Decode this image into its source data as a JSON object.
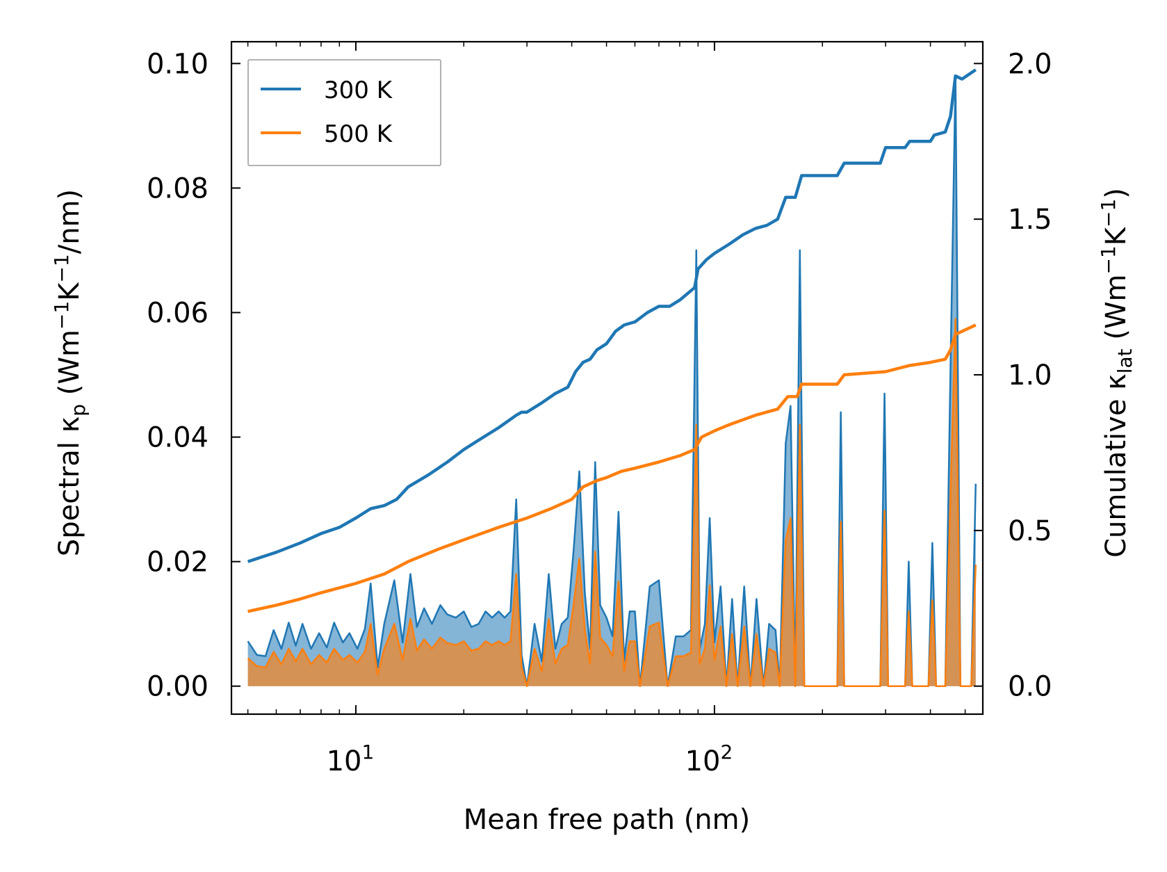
{
  "colors": {
    "s300": "#1f77b4",
    "s500": "#ff7f0e",
    "frame": "#000000",
    "legend_border": "#999999"
  },
  "chart_data": {
    "type": "line",
    "title": "",
    "xlabel": "Mean free path (nm)",
    "ylabel_left": "Spectral κ_p (Wm⁻¹K⁻¹/nm)",
    "ylabel_right": "Cumulative κ_lat (Wm⁻¹K⁻¹)",
    "x_scale": "log",
    "xlim": [
      4.5,
      560
    ],
    "ylim_left": [
      -0.0045,
      0.1035
    ],
    "ylim_right": [
      -0.09,
      2.07
    ],
    "xticks": [
      {
        "value": 10,
        "base": "10",
        "exp": "1"
      },
      {
        "value": 100,
        "base": "10",
        "exp": "2"
      }
    ],
    "yticks_left": [
      "0.00",
      "0.02",
      "0.04",
      "0.06",
      "0.08",
      "0.10"
    ],
    "yticks_left_values": [
      0,
      0.02,
      0.04,
      0.06,
      0.08,
      0.1
    ],
    "yticks_right": [
      "0.0",
      "0.5",
      "1.0",
      "1.5",
      "2.0"
    ],
    "yticks_right_values": [
      0,
      0.5,
      1.0,
      1.5,
      2.0
    ],
    "legend": {
      "position": "top-left",
      "entries": [
        "300 K",
        "500 K"
      ]
    },
    "spectral_series": [
      {
        "name": "300 K spectral",
        "axis": "left",
        "points": [
          [
            5.0,
            0.0072
          ],
          [
            5.3,
            0.005
          ],
          [
            5.6,
            0.0048
          ],
          [
            5.9,
            0.009
          ],
          [
            6.2,
            0.006
          ],
          [
            6.5,
            0.0102
          ],
          [
            6.8,
            0.0065
          ],
          [
            7.1,
            0.01
          ],
          [
            7.5,
            0.006
          ],
          [
            7.9,
            0.0085
          ],
          [
            8.3,
            0.0062
          ],
          [
            8.7,
            0.0102
          ],
          [
            9.2,
            0.007
          ],
          [
            9.6,
            0.0085
          ],
          [
            10.1,
            0.006
          ],
          [
            10.6,
            0.0092
          ],
          [
            11.0,
            0.0165
          ],
          [
            11.5,
            0.003
          ],
          [
            12.0,
            0.01
          ],
          [
            12.8,
            0.017
          ],
          [
            13.5,
            0.007
          ],
          [
            14.2,
            0.018
          ],
          [
            14.8,
            0.0095
          ],
          [
            15.5,
            0.0125
          ],
          [
            16.3,
            0.01
          ],
          [
            17.2,
            0.013
          ],
          [
            18.0,
            0.0115
          ],
          [
            19.0,
            0.011
          ],
          [
            20.0,
            0.012
          ],
          [
            21.0,
            0.0095
          ],
          [
            22.0,
            0.01
          ],
          [
            23.0,
            0.012
          ],
          [
            24.0,
            0.011
          ],
          [
            25.0,
            0.012
          ],
          [
            26.0,
            0.011
          ],
          [
            27.0,
            0.012
          ],
          [
            28.0,
            0.03
          ],
          [
            29.0,
            0.005
          ],
          [
            30.0,
            0.0
          ],
          [
            31.5,
            0.01
          ],
          [
            33.0,
            0.004
          ],
          [
            34.5,
            0.018
          ],
          [
            36.0,
            0.006
          ],
          [
            37.5,
            0.01
          ],
          [
            39.0,
            0.011
          ],
          [
            40.5,
            0.022
          ],
          [
            42.0,
            0.0345
          ],
          [
            43.5,
            0.015
          ],
          [
            45.0,
            0.006
          ],
          [
            46.5,
            0.036
          ],
          [
            48.0,
            0.013
          ],
          [
            50.0,
            0.011
          ],
          [
            52.0,
            0.008
          ],
          [
            54.0,
            0.028
          ],
          [
            56.0,
            0.004
          ],
          [
            58.0,
            0.012
          ],
          [
            60.0,
            0.012
          ],
          [
            62.0,
            0.0
          ],
          [
            66.0,
            0.016
          ],
          [
            70.0,
            0.017
          ],
          [
            74.0,
            0.0
          ],
          [
            78.0,
            0.008
          ],
          [
            82.0,
            0.008
          ],
          [
            86.0,
            0.009
          ],
          [
            89.0,
            0.07
          ],
          [
            91.0,
            0.006
          ],
          [
            94.0,
            0.01
          ],
          [
            97.0,
            0.027
          ],
          [
            100.0,
            0.007
          ],
          [
            104.0,
            0.016
          ],
          [
            108.0,
            0.0
          ],
          [
            112.0,
            0.014
          ],
          [
            116.0,
            0.0
          ],
          [
            121.0,
            0.016
          ],
          [
            126.0,
            0.0
          ],
          [
            131.0,
            0.014
          ],
          [
            137.0,
            0.0
          ],
          [
            142.0,
            0.01
          ],
          [
            148.0,
            0.009
          ],
          [
            152.0,
            0.0
          ],
          [
            158.0,
            0.039
          ],
          [
            163.0,
            0.045
          ],
          [
            168.0,
            0.0
          ],
          [
            173.0,
            0.07
          ],
          [
            178.0,
            0.0
          ],
          [
            220.0,
            0.0
          ],
          [
            225.0,
            0.044
          ],
          [
            230.0,
            0.0
          ],
          [
            290.0,
            0.0
          ],
          [
            298.0,
            0.047
          ],
          [
            305.0,
            0.0
          ],
          [
            340.0,
            0.0
          ],
          [
            348.0,
            0.02
          ],
          [
            356.0,
            0.0
          ],
          [
            395.0,
            0.0
          ],
          [
            405.0,
            0.023
          ],
          [
            415.0,
            0.0
          ],
          [
            440.0,
            0.0
          ],
          [
            455.0,
            0.051
          ],
          [
            470.0,
            0.098
          ],
          [
            485.0,
            0.0
          ],
          [
            520.0,
            0.0
          ],
          [
            535.0,
            0.0325
          ]
        ]
      },
      {
        "name": "500 K spectral",
        "axis": "left",
        "points": [
          [
            5.0,
            0.0045
          ],
          [
            5.3,
            0.0032
          ],
          [
            5.6,
            0.003
          ],
          [
            5.9,
            0.0055
          ],
          [
            6.2,
            0.0035
          ],
          [
            6.5,
            0.006
          ],
          [
            6.8,
            0.004
          ],
          [
            7.1,
            0.006
          ],
          [
            7.5,
            0.0035
          ],
          [
            7.9,
            0.005
          ],
          [
            8.3,
            0.0038
          ],
          [
            8.7,
            0.006
          ],
          [
            9.2,
            0.0042
          ],
          [
            9.6,
            0.005
          ],
          [
            10.1,
            0.0038
          ],
          [
            10.6,
            0.0055
          ],
          [
            11.0,
            0.01
          ],
          [
            11.5,
            0.0018
          ],
          [
            12.0,
            0.006
          ],
          [
            12.8,
            0.01
          ],
          [
            13.5,
            0.0042
          ],
          [
            14.2,
            0.0108
          ],
          [
            14.8,
            0.0057
          ],
          [
            15.5,
            0.0075
          ],
          [
            16.3,
            0.006
          ],
          [
            17.2,
            0.0078
          ],
          [
            18.0,
            0.0069
          ],
          [
            19.0,
            0.0066
          ],
          [
            20.0,
            0.0072
          ],
          [
            21.0,
            0.0057
          ],
          [
            22.0,
            0.006
          ],
          [
            23.0,
            0.0072
          ],
          [
            24.0,
            0.0066
          ],
          [
            25.0,
            0.0072
          ],
          [
            26.0,
            0.0066
          ],
          [
            27.0,
            0.0072
          ],
          [
            28.0,
            0.018
          ],
          [
            29.0,
            0.003
          ],
          [
            30.0,
            0.0
          ],
          [
            31.5,
            0.006
          ],
          [
            33.0,
            0.0024
          ],
          [
            34.5,
            0.0108
          ],
          [
            36.0,
            0.0036
          ],
          [
            37.5,
            0.006
          ],
          [
            39.0,
            0.0066
          ],
          [
            40.5,
            0.0132
          ],
          [
            42.0,
            0.0205
          ],
          [
            43.5,
            0.009
          ],
          [
            45.0,
            0.0036
          ],
          [
            46.5,
            0.0216
          ],
          [
            48.0,
            0.0078
          ],
          [
            50.0,
            0.0066
          ],
          [
            52.0,
            0.0048
          ],
          [
            54.0,
            0.0168
          ],
          [
            56.0,
            0.0024
          ],
          [
            58.0,
            0.0072
          ],
          [
            60.0,
            0.0072
          ],
          [
            62.0,
            0.0
          ],
          [
            66.0,
            0.0096
          ],
          [
            70.0,
            0.0102
          ],
          [
            74.0,
            0.0
          ],
          [
            78.0,
            0.0048
          ],
          [
            82.0,
            0.0048
          ],
          [
            86.0,
            0.0054
          ],
          [
            89.0,
            0.042
          ],
          [
            91.0,
            0.0036
          ],
          [
            94.0,
            0.006
          ],
          [
            97.0,
            0.0162
          ],
          [
            100.0,
            0.0042
          ],
          [
            104.0,
            0.0096
          ],
          [
            108.0,
            0.0
          ],
          [
            112.0,
            0.0084
          ],
          [
            116.0,
            0.0
          ],
          [
            121.0,
            0.0096
          ],
          [
            126.0,
            0.0
          ],
          [
            131.0,
            0.0084
          ],
          [
            137.0,
            0.0
          ],
          [
            142.0,
            0.006
          ],
          [
            148.0,
            0.0054
          ],
          [
            152.0,
            0.0
          ],
          [
            158.0,
            0.0234
          ],
          [
            163.0,
            0.027
          ],
          [
            168.0,
            0.0
          ],
          [
            173.0,
            0.042
          ],
          [
            178.0,
            0.0
          ],
          [
            220.0,
            0.0
          ],
          [
            225.0,
            0.0264
          ],
          [
            230.0,
            0.0
          ],
          [
            290.0,
            0.0
          ],
          [
            298.0,
            0.0282
          ],
          [
            305.0,
            0.0
          ],
          [
            340.0,
            0.0
          ],
          [
            348.0,
            0.012
          ],
          [
            356.0,
            0.0
          ],
          [
            395.0,
            0.0
          ],
          [
            405.0,
            0.0138
          ],
          [
            415.0,
            0.0
          ],
          [
            440.0,
            0.0
          ],
          [
            455.0,
            0.0306
          ],
          [
            470.0,
            0.059
          ],
          [
            485.0,
            0.0
          ],
          [
            520.0,
            0.0
          ],
          [
            535.0,
            0.0195
          ]
        ]
      }
    ],
    "cumulative_series": [
      {
        "name": "300 K",
        "axis": "right",
        "points": [
          [
            5.0,
            0.4
          ],
          [
            6.0,
            0.43
          ],
          [
            7.0,
            0.46
          ],
          [
            8.0,
            0.49
          ],
          [
            9.0,
            0.51
          ],
          [
            10.0,
            0.54
          ],
          [
            11.0,
            0.57
          ],
          [
            12.0,
            0.58
          ],
          [
            13.0,
            0.6
          ],
          [
            14.0,
            0.64
          ],
          [
            16.0,
            0.68
          ],
          [
            18.0,
            0.72
          ],
          [
            20.0,
            0.76
          ],
          [
            22.0,
            0.79
          ],
          [
            25.0,
            0.83
          ],
          [
            28.0,
            0.87
          ],
          [
            29.0,
            0.88
          ],
          [
            30.0,
            0.88
          ],
          [
            33.0,
            0.91
          ],
          [
            36.0,
            0.94
          ],
          [
            39.0,
            0.96
          ],
          [
            41.0,
            1.01
          ],
          [
            43.0,
            1.04
          ],
          [
            45.0,
            1.05
          ],
          [
            47.0,
            1.08
          ],
          [
            50.0,
            1.1
          ],
          [
            53.0,
            1.14
          ],
          [
            56.0,
            1.16
          ],
          [
            60.0,
            1.17
          ],
          [
            65.0,
            1.2
          ],
          [
            70.0,
            1.22
          ],
          [
            75.0,
            1.22
          ],
          [
            80.0,
            1.24
          ],
          [
            88.0,
            1.28
          ],
          [
            90.0,
            1.34
          ],
          [
            95.0,
            1.37
          ],
          [
            100.0,
            1.39
          ],
          [
            110.0,
            1.42
          ],
          [
            120.0,
            1.45
          ],
          [
            130.0,
            1.47
          ],
          [
            140.0,
            1.48
          ],
          [
            150.0,
            1.5
          ],
          [
            158.0,
            1.57
          ],
          [
            168.0,
            1.57
          ],
          [
            175.0,
            1.64
          ],
          [
            220.0,
            1.64
          ],
          [
            230.0,
            1.68
          ],
          [
            290.0,
            1.68
          ],
          [
            300.0,
            1.73
          ],
          [
            340.0,
            1.73
          ],
          [
            350.0,
            1.75
          ],
          [
            400.0,
            1.75
          ],
          [
            410.0,
            1.77
          ],
          [
            440.0,
            1.78
          ],
          [
            455.0,
            1.83
          ],
          [
            470.0,
            1.96
          ],
          [
            490.0,
            1.95
          ],
          [
            535.0,
            1.98
          ]
        ]
      },
      {
        "name": "500 K",
        "axis": "right",
        "points": [
          [
            5.0,
            0.24
          ],
          [
            6.0,
            0.26
          ],
          [
            7.0,
            0.28
          ],
          [
            8.0,
            0.3
          ],
          [
            10.0,
            0.33
          ],
          [
            12.0,
            0.36
          ],
          [
            14.0,
            0.4
          ],
          [
            17.0,
            0.44
          ],
          [
            20.0,
            0.47
          ],
          [
            25.0,
            0.51
          ],
          [
            30.0,
            0.54
          ],
          [
            35.0,
            0.57
          ],
          [
            40.0,
            0.6
          ],
          [
            43.0,
            0.64
          ],
          [
            47.0,
            0.66
          ],
          [
            50.0,
            0.67
          ],
          [
            55.0,
            0.69
          ],
          [
            60.0,
            0.7
          ],
          [
            70.0,
            0.72
          ],
          [
            80.0,
            0.74
          ],
          [
            88.0,
            0.76
          ],
          [
            92.0,
            0.8
          ],
          [
            100.0,
            0.82
          ],
          [
            110.0,
            0.84
          ],
          [
            130.0,
            0.87
          ],
          [
            150.0,
            0.89
          ],
          [
            160.0,
            0.93
          ],
          [
            170.0,
            0.93
          ],
          [
            175.0,
            0.97
          ],
          [
            220.0,
            0.97
          ],
          [
            230.0,
            1.0
          ],
          [
            300.0,
            1.01
          ],
          [
            350.0,
            1.03
          ],
          [
            400.0,
            1.04
          ],
          [
            440.0,
            1.05
          ],
          [
            455.0,
            1.08
          ],
          [
            470.0,
            1.13
          ],
          [
            535.0,
            1.16
          ]
        ]
      }
    ]
  }
}
